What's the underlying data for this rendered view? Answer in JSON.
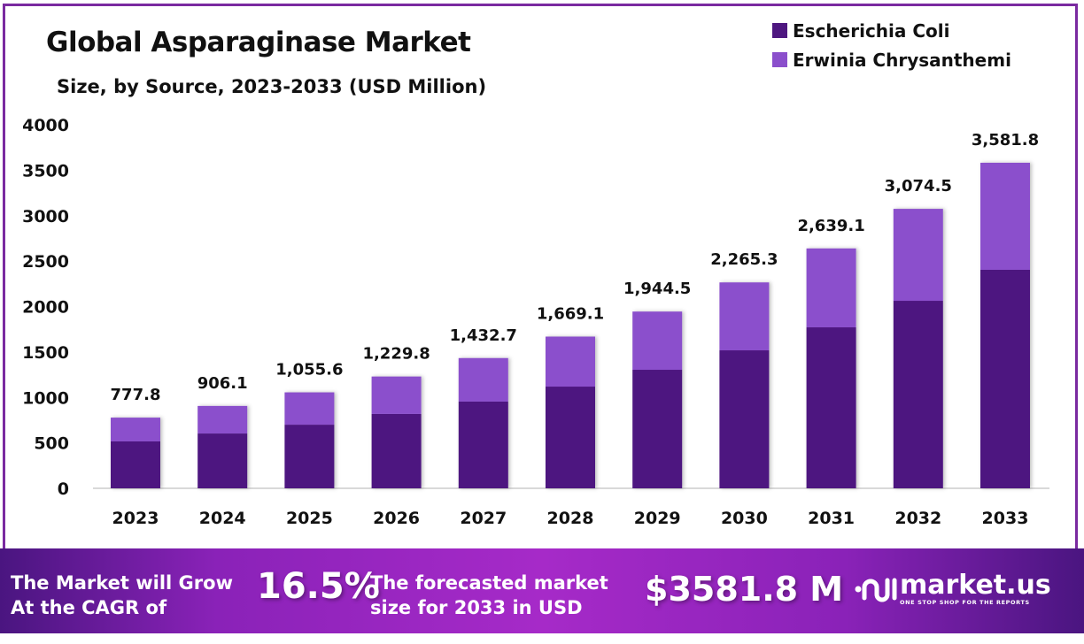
{
  "header": {
    "title": "Global Asparaginase Market",
    "subtitle": "Size, by Source, 2023-2033 (USD Million)"
  },
  "legend": [
    {
      "label": "Escherichia Coli",
      "color": "#4e1780"
    },
    {
      "label": "Erwinia Chrysanthemi",
      "color": "#8b4fcc"
    }
  ],
  "banner": {
    "cagr_text_line1": "The Market will Grow",
    "cagr_text_line2": "At the CAGR of",
    "cagr_value": "16.5%",
    "forecast_text_line1": "The forecasted market",
    "forecast_text_line2": "size for 2033 in USD",
    "forecast_value": "$3581.8 M",
    "logo_name": "market.us",
    "logo_tagline": "ONE STOP SHOP FOR THE REPORTS"
  },
  "chart_data": {
    "type": "bar",
    "stacked": true,
    "title": "Global Asparaginase Market",
    "subtitle": "Size, by Source, 2023-2033 (USD Million)",
    "xlabel": "",
    "ylabel": "",
    "ylim": [
      0,
      4000
    ],
    "yticks": [
      0,
      500,
      1000,
      1500,
      2000,
      2500,
      3000,
      3500,
      4000
    ],
    "legend_position": "top-right",
    "grid": false,
    "categories": [
      "2023",
      "2024",
      "2025",
      "2026",
      "2027",
      "2028",
      "2029",
      "2030",
      "2031",
      "2032",
      "2033"
    ],
    "series": [
      {
        "name": "Escherichia Coli",
        "color": "#4e1780",
        "values": [
          516,
          603,
          700,
          818,
          954,
          1119,
          1304,
          1518,
          1771,
          2063,
          2404
        ]
      },
      {
        "name": "Erwinia Chrysanthemi",
        "color": "#8b4fcc",
        "values": [
          261.8,
          303.1,
          355.6,
          411.8,
          478.7,
          550.1,
          640.5,
          747.3,
          868.1,
          1011.5,
          1177.8
        ]
      }
    ],
    "totals": [
      777.8,
      906.1,
      1055.6,
      1229.8,
      1432.7,
      1669.1,
      1944.5,
      2265.3,
      2639.1,
      3074.5,
      3581.8
    ],
    "total_labels": [
      "777.8",
      "906.1",
      "1,055.6",
      "1,229.8",
      "1,432.7",
      "1,669.1",
      "1,944.5",
      "2,265.3",
      "2,639.1",
      "3,074.5",
      "3,581.8"
    ]
  }
}
